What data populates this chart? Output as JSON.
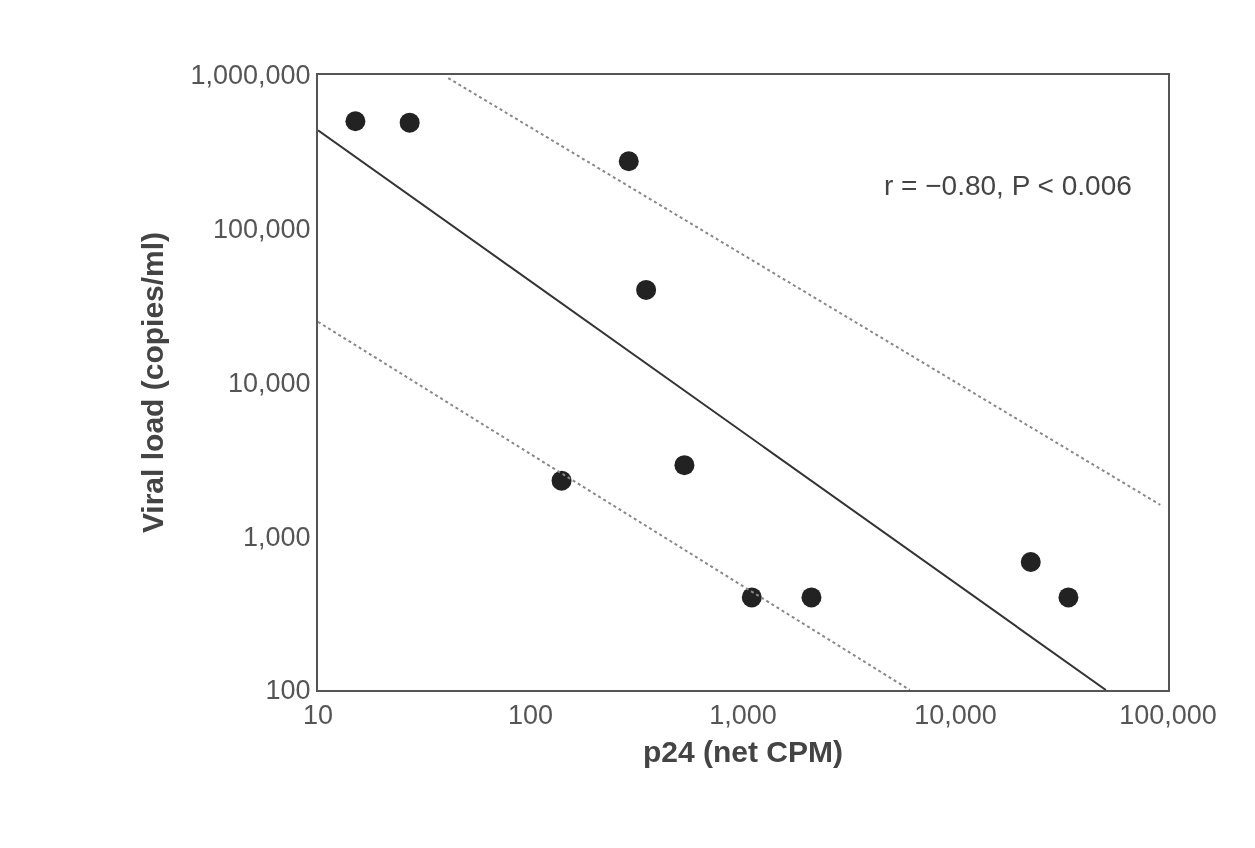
{
  "chart_data": {
    "type": "scatter",
    "xlabel": "p24 (net CPM)",
    "ylabel": "Viral load (copies/ml)",
    "log": "xy",
    "grid": false,
    "xlim": [
      10,
      100000
    ],
    "ylim": [
      100,
      1000000
    ],
    "xticks": [
      {
        "value": 10,
        "label": "10"
      },
      {
        "value": 100,
        "label": "100"
      },
      {
        "value": 1000,
        "label": "1,000"
      },
      {
        "value": 10000,
        "label": "10,000"
      },
      {
        "value": 100000,
        "label": "100,000"
      }
    ],
    "yticks": [
      {
        "value": 100,
        "label": "100"
      },
      {
        "value": 1000,
        "label": "1,000"
      },
      {
        "value": 10000,
        "label": "10,000"
      },
      {
        "value": 100000,
        "label": "100,000"
      },
      {
        "value": 1000000,
        "label": "1,000,000"
      }
    ],
    "annotations": [
      "r = −0.80, P < 0.006"
    ],
    "series": [
      {
        "marker": "circle",
        "color": "#222222",
        "x": [
          15,
          27,
          290,
          350,
          140,
          530,
          1100,
          2100,
          22600,
          34000
        ],
        "values": [
          500000,
          490000,
          275000,
          40000,
          2300,
          2900,
          400,
          400,
          680,
          400
        ]
      },
      {
        "type": "line",
        "line_style": "solid",
        "marker": "none",
        "color": "#333333",
        "x": [
          10,
          51000
        ],
        "values": [
          437000,
          100
        ]
      },
      {
        "type": "line",
        "line_style": "dotted",
        "marker": "none",
        "color": "#888888",
        "x": [
          41,
          92000
        ],
        "values": [
          955000,
          1600
        ]
      },
      {
        "type": "line",
        "line_style": "dotted",
        "marker": "none",
        "color": "#888888",
        "x": [
          10,
          6100
        ],
        "values": [
          24800,
          100
        ]
      }
    ]
  }
}
